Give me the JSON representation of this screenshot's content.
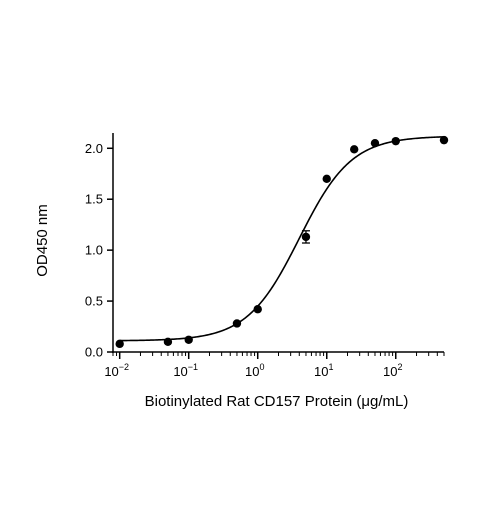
{
  "chart_data": {
    "type": "scatter",
    "title": "",
    "xlabel": "Biotinylated Rat CD157 Protein (μg/mL)",
    "ylabel": "OD450 nm",
    "xscale": "log",
    "xlim": [
      0.008,
      500
    ],
    "ylim": [
      0.0,
      2.15
    ],
    "grid": false,
    "x_ticks": [
      {
        "base": "10",
        "exp": "-2"
      },
      {
        "base": "10",
        "exp": "-1"
      },
      {
        "base": "10",
        "exp": "0"
      },
      {
        "base": "10",
        "exp": "1"
      },
      {
        "base": "10",
        "exp": "2"
      }
    ],
    "y_ticks": [
      "0.0",
      "0.5",
      "1.0",
      "1.5",
      "2.0"
    ],
    "y_tick_values": [
      0.0,
      0.5,
      1.0,
      1.5,
      2.0
    ],
    "series": [
      {
        "x": [
          0.01,
          0.05,
          0.1,
          0.5,
          1,
          5,
          10,
          25,
          50,
          100,
          500
        ],
        "y": [
          0.08,
          0.1,
          0.12,
          0.28,
          0.42,
          1.13,
          1.7,
          1.99,
          2.05,
          2.07,
          2.08
        ],
        "error": [
          0,
          0,
          0,
          0,
          0,
          0.06,
          0,
          0,
          0,
          0,
          0
        ]
      }
    ],
    "fit": {
      "model": "4PL",
      "bottom": 0.11,
      "top": 2.12,
      "ec50": 4.0,
      "hill": 1.15
    },
    "colors": {
      "points": "#000000",
      "curve": "#000000",
      "axes": "#000000"
    }
  }
}
